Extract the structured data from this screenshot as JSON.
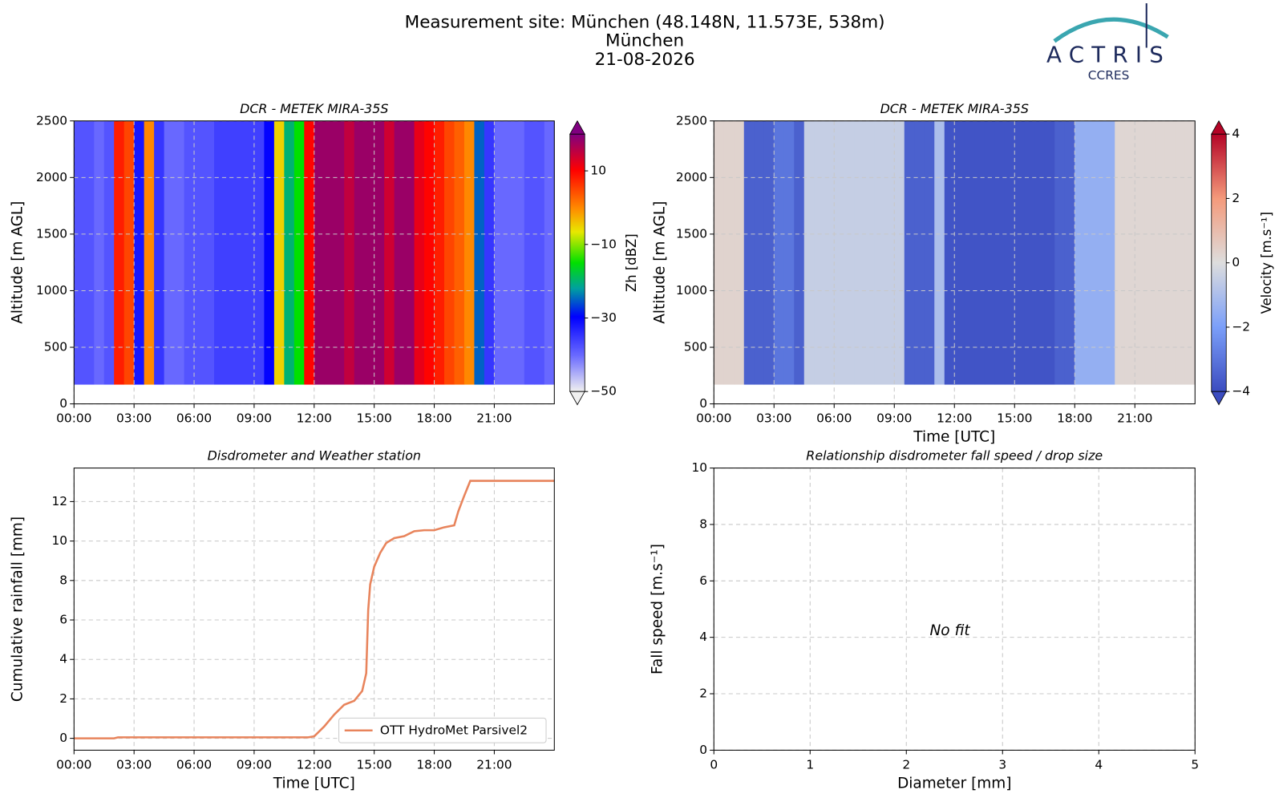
{
  "header": {
    "title": "Measurement site: München (48.148N, 11.573E, 538m)",
    "subtitle": "München",
    "date": "21-08-2026"
  },
  "logo": {
    "name": "ACTRIS",
    "sub": "CCRES"
  },
  "chart_data": [
    {
      "type": "heatmap",
      "title": "DCR - METEK MIRA-35S",
      "ylabel": "Altitude [m AGL]",
      "x_bins": [
        0,
        0.5,
        1,
        1.5,
        2,
        2.5,
        3,
        3.5,
        4,
        4.5,
        5,
        5.5,
        6,
        6.5,
        7,
        7.5,
        8,
        8.5,
        9,
        9.5,
        10,
        10.5,
        11,
        11.5,
        12,
        12.5,
        13,
        13.5,
        14,
        14.5,
        15,
        15.5,
        16,
        16.5,
        17,
        17.5,
        18,
        18.5,
        19,
        19.5,
        20,
        20.5,
        21,
        21.5,
        22,
        22.5,
        23,
        23.5,
        24
      ],
      "y_bins": [
        170,
        2500
      ],
      "values": [
        -38,
        -38,
        -40,
        -38,
        8,
        5,
        -32,
        0,
        -35,
        -40,
        -40,
        -38,
        -38,
        -38,
        -36,
        -36,
        -36,
        -36,
        -36,
        -30,
        -5,
        -20,
        -15,
        10,
        18,
        18,
        18,
        15,
        18,
        18,
        18,
        14,
        18,
        18,
        12,
        10,
        8,
        5,
        3,
        0,
        -25,
        -35,
        -40,
        -40,
        -40,
        -38,
        -38,
        -40
      ],
      "colormap": "jet",
      "clim": [
        -50,
        20
      ],
      "cticks": [
        {
          "value": -50,
          "label": "−50"
        },
        {
          "value": -30,
          "label": "−30"
        },
        {
          "value": -10,
          "label": "−10"
        },
        10
      ],
      "clabel": "Zh [dBZ]",
      "xlim": [
        0,
        24
      ],
      "xticks": [
        {
          "value": 0,
          "label": "00:00"
        },
        {
          "value": 3,
          "label": "03:00"
        },
        {
          "value": 6,
          "label": "06:00"
        },
        {
          "value": 9,
          "label": "09:00"
        },
        {
          "value": 12,
          "label": "12:00"
        },
        {
          "value": 15,
          "label": "15:00"
        },
        {
          "value": 18,
          "label": "18:00"
        },
        {
          "value": 21,
          "label": "21:00"
        }
      ],
      "ylim": [
        0,
        2500
      ],
      "yticks": [
        0,
        500,
        1000,
        1500,
        2000,
        2500
      ],
      "grid": true
    },
    {
      "type": "heatmap",
      "title": "DCR - METEK MIRA-35S",
      "ylabel": "Altitude [m AGL]",
      "xlabel": "Time [UTC]",
      "x_bins": [
        0,
        0.5,
        1,
        1.5,
        2,
        2.5,
        3,
        3.5,
        4,
        4.5,
        5,
        5.5,
        6,
        6.5,
        7,
        7.5,
        8,
        8.5,
        9,
        9.5,
        10,
        10.5,
        11,
        11.5,
        12,
        12.5,
        13,
        13.5,
        14,
        14.5,
        15,
        15.5,
        16,
        16.5,
        17,
        17.5,
        18,
        18.5,
        19,
        19.5,
        20,
        20.5,
        21,
        21.5,
        22,
        22.5,
        23,
        23.5,
        24
      ],
      "y_bins": [
        170,
        2500
      ],
      "values": [
        0.3,
        0.3,
        0.3,
        -3.5,
        -3.5,
        -3.5,
        -3,
        -3,
        -3.5,
        -0.5,
        -0.5,
        -0.5,
        -0.5,
        -0.5,
        -0.5,
        -0.5,
        -0.5,
        -0.5,
        -0.5,
        -3.5,
        -3.5,
        -3.5,
        -1,
        -3.8,
        -3.8,
        -3.8,
        -3.8,
        -3.8,
        -3.8,
        -3.8,
        -3.8,
        -3.8,
        -3.8,
        -3.8,
        -3.5,
        -3.5,
        -1.5,
        -1.5,
        -1.5,
        -1.5,
        0.2,
        0.2,
        0.2,
        0.2,
        0.2,
        0.2,
        0.2,
        0.2
      ],
      "colormap": "coolwarm",
      "clim": [
        -4,
        4
      ],
      "cticks": [
        {
          "value": -4,
          "label": "−4"
        },
        {
          "value": -2,
          "label": "−2"
        },
        0,
        2,
        4
      ],
      "clabel": "Velocity [m.s⁻¹]",
      "xlim": [
        0,
        24
      ],
      "xticks": [
        {
          "value": 0,
          "label": "00:00"
        },
        {
          "value": 3,
          "label": "03:00"
        },
        {
          "value": 6,
          "label": "06:00"
        },
        {
          "value": 9,
          "label": "09:00"
        },
        {
          "value": 12,
          "label": "12:00"
        },
        {
          "value": 15,
          "label": "15:00"
        },
        {
          "value": 18,
          "label": "18:00"
        },
        {
          "value": 21,
          "label": "21:00"
        }
      ],
      "ylim": [
        0,
        2500
      ],
      "yticks": [
        0,
        500,
        1000,
        1500,
        2000,
        2500
      ],
      "grid": true
    },
    {
      "type": "line",
      "title": "Disdrometer and Weather station",
      "ylabel": "Cumulative rainfall [mm]",
      "xlabel": "Time [UTC]",
      "x": [
        0,
        2,
        2.2,
        11.7,
        12,
        12.5,
        13,
        13.5,
        14,
        14.4,
        14.6,
        14.7,
        14.8,
        15,
        15.3,
        15.6,
        16,
        16.5,
        17,
        17.5,
        18,
        18.5,
        19,
        19.2,
        19.5,
        19.8,
        20,
        24
      ],
      "series": [
        {
          "name": "OTT HydroMet Parsivel2",
          "color": "#e8845c",
          "values": [
            0,
            0,
            0.05,
            0.05,
            0.1,
            0.6,
            1.2,
            1.7,
            1.9,
            2.4,
            3.3,
            6.5,
            7.8,
            8.7,
            9.4,
            9.9,
            10.15,
            10.25,
            10.5,
            10.55,
            10.55,
            10.7,
            10.8,
            11.5,
            12.3,
            13.05,
            13.05,
            13.05
          ]
        }
      ],
      "legend": "lower right",
      "xlim": [
        0,
        24
      ],
      "xticks": [
        {
          "value": 0,
          "label": "00:00"
        },
        {
          "value": 3,
          "label": "03:00"
        },
        {
          "value": 6,
          "label": "06:00"
        },
        {
          "value": 9,
          "label": "09:00"
        },
        {
          "value": 12,
          "label": "12:00"
        },
        {
          "value": 15,
          "label": "15:00"
        },
        {
          "value": 18,
          "label": "18:00"
        },
        {
          "value": 21,
          "label": "21:00"
        }
      ],
      "ylim": [
        -0.6,
        13.7
      ],
      "yticks": [
        0,
        2,
        4,
        6,
        8,
        10,
        12
      ],
      "grid": true
    },
    {
      "type": "scatter",
      "title": "Relationship disdrometer fall speed / drop size",
      "ylabel": "Fall speed [m.s⁻¹]",
      "xlabel": "Diameter [mm]",
      "annotation": "No fit",
      "xlim": [
        0,
        5
      ],
      "xticks": [
        0,
        1,
        2,
        3,
        4,
        5
      ],
      "ylim": [
        0,
        10
      ],
      "yticks": [
        0,
        2,
        4,
        6,
        8,
        10
      ],
      "grid": true
    }
  ]
}
